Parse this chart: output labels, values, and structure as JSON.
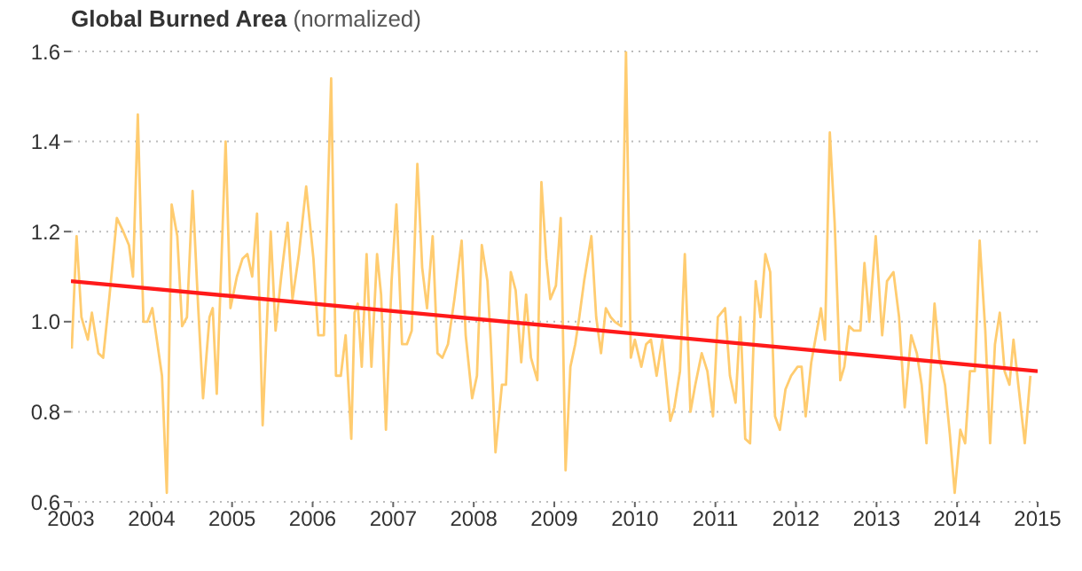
{
  "chart_data": {
    "type": "line",
    "title": "Global Burned Area",
    "subtitle": "(normalized)",
    "xlim": [
      2003,
      2015
    ],
    "xticks": [
      2003,
      2004,
      2005,
      2006,
      2007,
      2008,
      2009,
      2010,
      2011,
      2012,
      2013,
      2014,
      2015
    ],
    "ylim": [
      0.6,
      1.6
    ],
    "yticks": [
      {
        "value": 0.6,
        "label": "0.6"
      },
      {
        "value": 0.8,
        "label": "0.8"
      },
      {
        "value": 1.0,
        "label": "1.0"
      },
      {
        "value": 1.2,
        "label": "1.2"
      },
      {
        "value": 1.4,
        "label": "1.4"
      },
      {
        "value": 1.6,
        "label": "1.6"
      }
    ],
    "grid": "y",
    "legend": false,
    "marker": "none",
    "line_style": "solid",
    "series": [
      {
        "color": "#ffcc70",
        "x": [
          2003.01,
          2003.07,
          2003.13,
          2003.21,
          2003.26,
          2003.34,
          2003.4,
          2003.48,
          2003.57,
          2003.65,
          2003.72,
          2003.77,
          2003.83,
          2003.9,
          2003.95,
          2004.01,
          2004.09,
          2004.13,
          2004.19,
          2004.25,
          2004.32,
          2004.38,
          2004.44,
          2004.51,
          2004.58,
          2004.64,
          2004.72,
          2004.76,
          2004.81,
          2004.92,
          2004.98,
          2005.06,
          2005.13,
          2005.19,
          2005.25,
          2005.31,
          2005.38,
          2005.48,
          2005.54,
          2005.61,
          2005.69,
          2005.75,
          2005.83,
          2005.92,
          2006.01,
          2006.07,
          2006.14,
          2006.23,
          2006.29,
          2006.35,
          2006.41,
          2006.48,
          2006.52,
          2006.56,
          2006.61,
          2006.67,
          2006.73,
          2006.8,
          2006.85,
          2006.91,
          2006.98,
          2007.04,
          2007.11,
          2007.17,
          2007.23,
          2007.3,
          2007.36,
          2007.42,
          2007.49,
          2007.55,
          2007.61,
          2007.68,
          2007.76,
          2007.85,
          2007.9,
          2007.98,
          2008.04,
          2008.1,
          2008.17,
          2008.21,
          2008.27,
          2008.35,
          2008.4,
          2008.46,
          2008.52,
          2008.59,
          2008.65,
          2008.71,
          2008.79,
          2008.84,
          2008.9,
          2008.95,
          2009.02,
          2009.08,
          2009.14,
          2009.2,
          2009.26,
          2009.31,
          2009.37,
          2009.46,
          2009.52,
          2009.58,
          2009.64,
          2009.7,
          2009.75,
          2009.83,
          2009.89,
          2009.95,
          2010.0,
          2010.08,
          2010.14,
          2010.2,
          2010.27,
          2010.34,
          2010.44,
          2010.49,
          2010.56,
          2010.62,
          2010.69,
          2010.75,
          2010.83,
          2010.9,
          2010.97,
          2011.03,
          2011.12,
          2011.18,
          2011.25,
          2011.31,
          2011.37,
          2011.43,
          2011.5,
          2011.56,
          2011.62,
          2011.68,
          2011.74,
          2011.8,
          2011.87,
          2011.94,
          2012.02,
          2012.07,
          2012.12,
          2012.19,
          2012.25,
          2012.31,
          2012.36,
          2012.42,
          2012.48,
          2012.55,
          2012.6,
          2012.66,
          2012.72,
          2012.8,
          2012.85,
          2012.91,
          2012.99,
          2013.07,
          2013.13,
          2013.21,
          2013.28,
          2013.35,
          2013.43,
          2013.5,
          2013.56,
          2013.62,
          2013.72,
          2013.78,
          2013.85,
          2013.91,
          2013.97,
          2014.04,
          2014.1,
          2014.16,
          2014.22,
          2014.28,
          2014.35,
          2014.41,
          2014.47,
          2014.53,
          2014.59,
          2014.65,
          2014.7,
          2014.76,
          2014.84,
          2014.91
        ],
        "values": [
          0.94,
          1.19,
          1.01,
          0.96,
          1.02,
          0.93,
          0.92,
          1.06,
          1.23,
          1.2,
          1.17,
          1.1,
          1.46,
          1.0,
          1.0,
          1.03,
          0.93,
          0.88,
          0.62,
          1.26,
          1.19,
          0.99,
          1.01,
          1.29,
          1.03,
          0.83,
          1.01,
          1.03,
          0.84,
          1.4,
          1.03,
          1.1,
          1.14,
          1.15,
          1.1,
          1.24,
          0.77,
          1.2,
          0.98,
          1.1,
          1.22,
          1.05,
          1.15,
          1.3,
          1.14,
          0.97,
          0.97,
          1.54,
          0.88,
          0.88,
          0.97,
          0.74,
          1.02,
          1.04,
          0.9,
          1.15,
          0.9,
          1.15,
          1.06,
          0.76,
          1.09,
          1.26,
          0.95,
          0.95,
          0.98,
          1.35,
          1.12,
          1.03,
          1.19,
          0.93,
          0.92,
          0.95,
          1.05,
          1.18,
          0.97,
          0.83,
          0.88,
          1.17,
          1.09,
          0.96,
          0.71,
          0.86,
          0.86,
          1.11,
          1.07,
          0.91,
          1.06,
          0.92,
          0.87,
          1.31,
          1.14,
          1.05,
          1.08,
          1.23,
          0.67,
          0.9,
          0.95,
          1.01,
          1.09,
          1.19,
          1.01,
          0.93,
          1.03,
          1.01,
          1.0,
          0.99,
          1.6,
          0.92,
          0.96,
          0.9,
          0.95,
          0.96,
          0.88,
          0.96,
          0.78,
          0.81,
          0.89,
          1.15,
          0.8,
          0.86,
          0.93,
          0.89,
          0.79,
          1.01,
          1.03,
          0.88,
          0.82,
          1.01,
          0.74,
          0.73,
          1.09,
          1.01,
          1.15,
          1.11,
          0.79,
          0.76,
          0.85,
          0.88,
          0.9,
          0.9,
          0.79,
          0.91,
          0.97,
          1.03,
          0.96,
          1.42,
          1.22,
          0.87,
          0.9,
          0.99,
          0.98,
          0.98,
          1.13,
          1.0,
          1.19,
          0.97,
          1.09,
          1.11,
          1.01,
          0.81,
          0.97,
          0.93,
          0.86,
          0.73,
          1.04,
          0.92,
          0.86,
          0.75,
          0.62,
          0.76,
          0.73,
          0.89,
          0.89,
          1.18,
          0.98,
          0.73,
          0.95,
          1.02,
          0.89,
          0.86,
          0.96,
          0.86,
          0.73,
          0.88
        ]
      },
      {
        "color": "#ff1a1a",
        "x": [
          2003,
          2015
        ],
        "values": [
          1.09,
          0.89
        ]
      }
    ]
  }
}
